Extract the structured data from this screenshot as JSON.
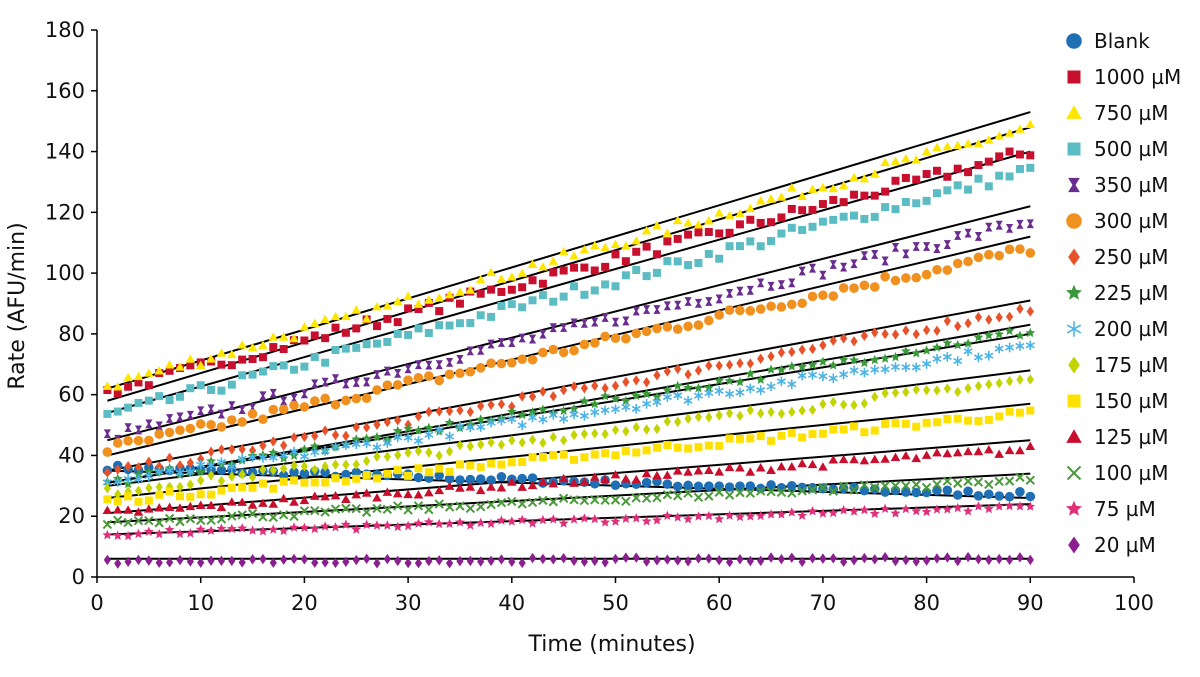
{
  "chart_data": {
    "type": "scatter",
    "title": "",
    "xlabel": "Time (minutes)",
    "ylabel": "Rate (AFU/min)",
    "xlim": [
      0,
      100
    ],
    "ylim": [
      0,
      180
    ],
    "xticks": [
      0,
      10,
      20,
      30,
      40,
      50,
      60,
      70,
      80,
      90,
      100
    ],
    "yticks": [
      0,
      20,
      40,
      60,
      80,
      100,
      120,
      140,
      160,
      180
    ],
    "grid": false,
    "legend": "right",
    "series": [
      {
        "name": "Blank",
        "marker": "circle",
        "color": "#1f6fb4",
        "start": 36,
        "end": 27,
        "fit": [
          35,
          26
        ]
      },
      {
        "name": "1000 µM",
        "marker": "square",
        "color": "#c8102e",
        "start": 61,
        "end": 140,
        "fit": [
          58,
          148
        ]
      },
      {
        "name": "750 µM",
        "marker": "triangle",
        "color": "#ffe600",
        "start": 63,
        "end": 148,
        "fit": [
          62,
          153
        ]
      },
      {
        "name": "500 µM",
        "marker": "square",
        "color": "#5bbcc4",
        "start": 53,
        "end": 134,
        "fit": [
          54,
          140
        ]
      },
      {
        "name": "350 µM",
        "marker": "hourglass",
        "color": "#6a2c8e",
        "start": 46,
        "end": 117,
        "fit": [
          45,
          122
        ]
      },
      {
        "name": "300 µM",
        "marker": "circle",
        "color": "#f0901e",
        "start": 42,
        "end": 108,
        "fit": [
          40,
          112
        ]
      },
      {
        "name": "250 µM",
        "marker": "diamond",
        "color": "#e8522a",
        "start": 34,
        "end": 88,
        "fit": [
          35,
          91
        ]
      },
      {
        "name": "225 µM",
        "marker": "star",
        "color": "#3a9a3a",
        "start": 31,
        "end": 81,
        "fit": [
          31,
          83
        ]
      },
      {
        "name": "200 µM",
        "marker": "asterisk",
        "color": "#4bb3e6",
        "start": 31,
        "end": 76,
        "fit": [
          31,
          80
        ]
      },
      {
        "name": "175 µM",
        "marker": "diamond",
        "color": "#c4d400",
        "start": 28,
        "end": 65,
        "fit": [
          30,
          68
        ]
      },
      {
        "name": "150 µM",
        "marker": "square",
        "color": "#ffe100",
        "start": 25,
        "end": 54,
        "fit": [
          26,
          57
        ]
      },
      {
        "name": "125 µM",
        "marker": "triangle",
        "color": "#c8102e",
        "start": 21,
        "end": 42,
        "fit": [
          21,
          45
        ]
      },
      {
        "name": "100 µM",
        "marker": "x",
        "color": "#4a9a3a",
        "start": 18,
        "end": 32,
        "fit": [
          18,
          34
        ]
      },
      {
        "name": "75 µM",
        "marker": "star",
        "color": "#e0307a",
        "start": 14,
        "end": 23,
        "fit": [
          14,
          24
        ]
      },
      {
        "name": "20 µM",
        "marker": "diamond",
        "color": "#8a2090",
        "start": 5,
        "end": 6,
        "fit": [
          6,
          6
        ]
      }
    ]
  }
}
